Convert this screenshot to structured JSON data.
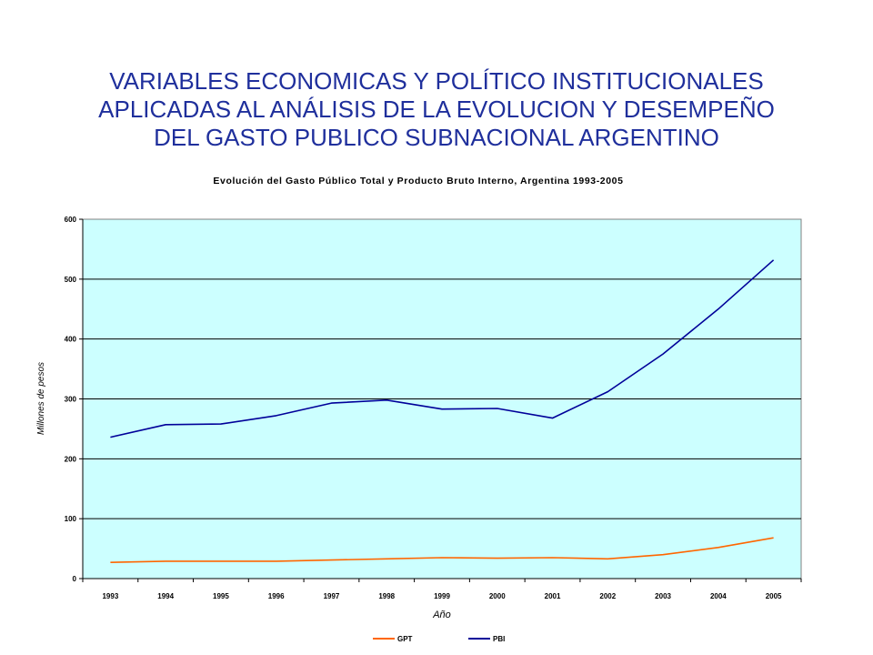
{
  "slide": {
    "title_lines": [
      "VARIABLES ECONOMICAS Y POLÍTICO INSTITUCIONALES",
      "APLICADAS AL ANÁLISIS DE LA EVOLUCION Y DESEMPEÑO",
      "DEL GASTO PUBLICO SUBNACIONAL ARGENTINO"
    ]
  },
  "colors": {
    "title": "#1f2f9c",
    "plot_background": "#ccffff",
    "gpt": "#ff6600",
    "pbi": "#000099"
  },
  "chart_data": {
    "type": "line",
    "title": "Evolución del Gasto Público Total y Producto Bruto Interno, Argentina 1993-2005",
    "xlabel": "Año",
    "ylabel": "Millones de pesos",
    "categories": [
      "1993",
      "1994",
      "1995",
      "1996",
      "1997",
      "1998",
      "1999",
      "2000",
      "2001",
      "2002",
      "2003",
      "2004",
      "2005"
    ],
    "ylim": [
      0,
      600
    ],
    "yticks": [
      0,
      100,
      200,
      300,
      400,
      500,
      600
    ],
    "grid": true,
    "legend_position": "bottom",
    "series": [
      {
        "name": "GPT",
        "color": "#ff6600",
        "values": [
          27,
          29,
          29,
          29,
          31,
          33,
          35,
          34,
          35,
          33,
          40,
          52,
          68
        ]
      },
      {
        "name": "PBI",
        "color": "#000099",
        "values": [
          236,
          257,
          258,
          272,
          293,
          298,
          283,
          284,
          268,
          312,
          375,
          450,
          532
        ]
      }
    ]
  }
}
